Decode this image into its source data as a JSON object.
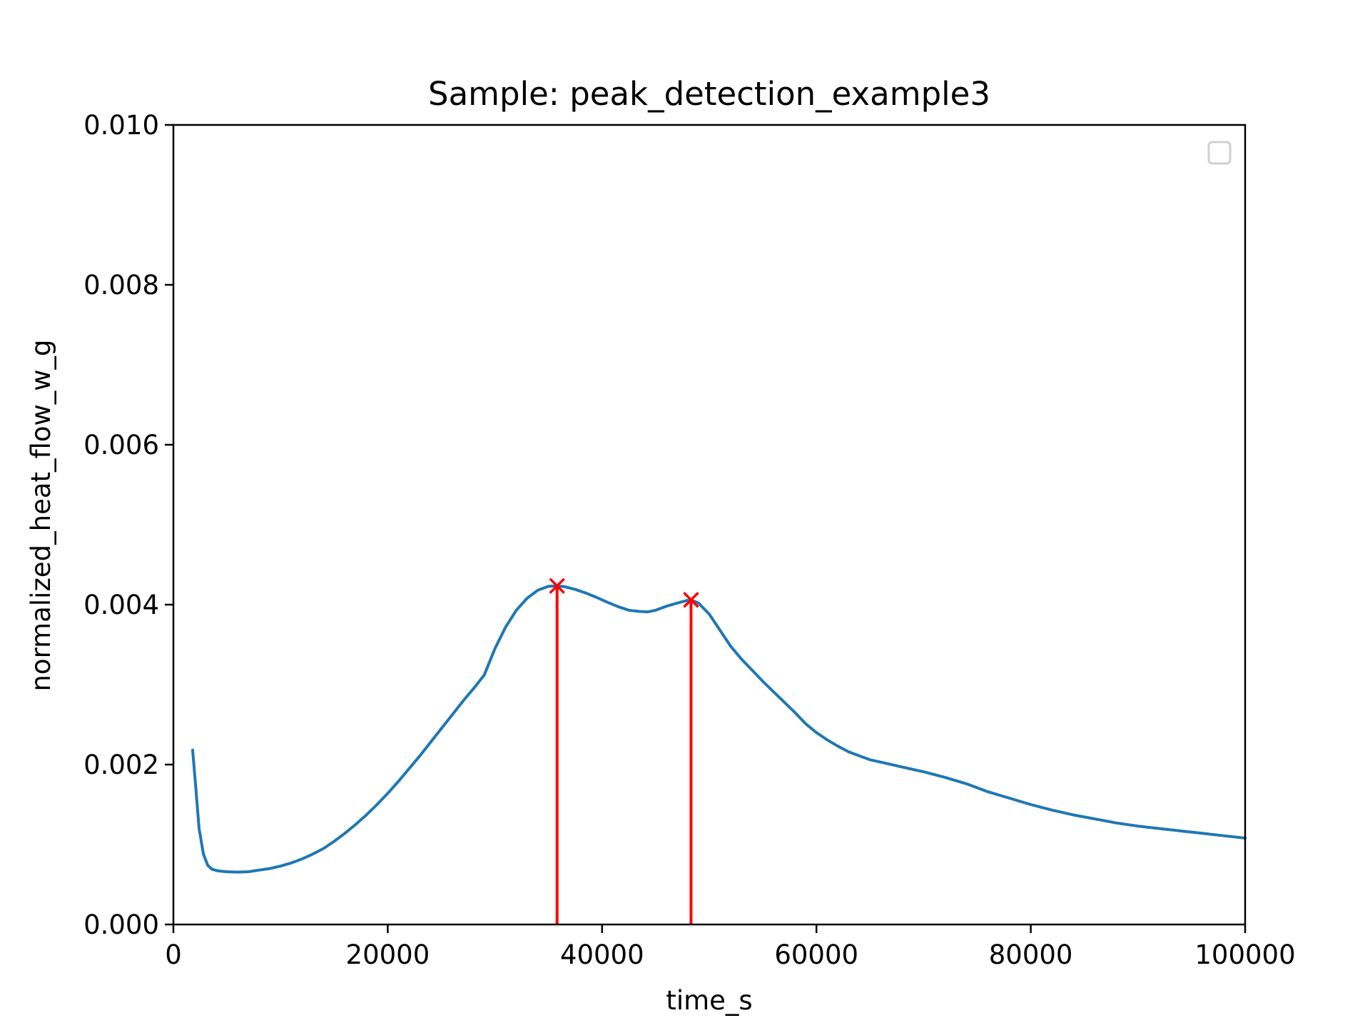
{
  "chart_data": {
    "type": "line",
    "title": "Sample: peak_detection_example3",
    "xlabel": "time_s",
    "ylabel": "normalized_heat_flow_w_g",
    "xlim": [
      0,
      100000
    ],
    "ylim": [
      0,
      0.01
    ],
    "xticks": [
      0,
      20000,
      40000,
      60000,
      80000,
      100000
    ],
    "xtick_labels": [
      "0",
      "20000",
      "40000",
      "60000",
      "80000",
      "100000"
    ],
    "yticks": [
      0,
      0.002,
      0.004,
      0.006,
      0.008,
      0.01
    ],
    "ytick_labels": [
      "0.000",
      "0.002",
      "0.004",
      "0.006",
      "0.008",
      "0.010"
    ],
    "grid": false,
    "legend": {
      "location": "upper right",
      "entries": []
    },
    "colors": {
      "series": "#1f77b4",
      "peaks": "#ff0000"
    },
    "series": [
      {
        "x": [
          1800,
          2100,
          2400,
          2800,
          3200,
          3600,
          4200,
          5000,
          6000,
          7000,
          8000,
          9000,
          10000,
          11000,
          12000,
          13000,
          14000,
          15000,
          16000,
          17000,
          18000,
          19000,
          20000,
          21000,
          22000,
          23000,
          24000,
          25000,
          26000,
          27000,
          27500,
          28000,
          29000,
          30000,
          31000,
          32000,
          33000,
          34000,
          35000,
          35800,
          36500,
          37500,
          38500,
          39500,
          40500,
          41500,
          42500,
          43500,
          44300,
          45000,
          46000,
          47000,
          48000,
          48300,
          49000,
          50000,
          51000,
          52000,
          53000,
          54000,
          55000,
          56000,
          57000,
          58000,
          59000,
          60000,
          61000,
          62000,
          63000,
          64000,
          65000,
          66000,
          68000,
          70000,
          72000,
          74000,
          75000,
          76000,
          78000,
          80000,
          82000,
          84000,
          86000,
          88000,
          90000,
          92000,
          94000,
          96000,
          98000,
          100000
        ],
        "y": [
          0.00218,
          0.0017,
          0.0012,
          0.00088,
          0.00074,
          0.00069,
          0.00067,
          0.00066,
          0.000655,
          0.00066,
          0.00068,
          0.0007,
          0.00073,
          0.00077,
          0.00082,
          0.00088,
          0.00095,
          0.00104,
          0.00114,
          0.00125,
          0.00137,
          0.0015,
          0.00164,
          0.00179,
          0.00195,
          0.00211,
          0.00228,
          0.00245,
          0.00262,
          0.00279,
          0.00287,
          0.00295,
          0.00312,
          0.00345,
          0.00372,
          0.00393,
          0.00408,
          0.00418,
          0.00423,
          0.004235,
          0.004225,
          0.00419,
          0.004145,
          0.00409,
          0.00403,
          0.003975,
          0.00393,
          0.003915,
          0.00391,
          0.00393,
          0.00398,
          0.00402,
          0.004055,
          0.00406,
          0.00402,
          0.00388,
          0.00368,
          0.00348,
          0.00332,
          0.00318,
          0.00304,
          0.00291,
          0.00278,
          0.00265,
          0.00251,
          0.0024,
          0.00231,
          0.00223,
          0.00216,
          0.00211,
          0.00206,
          0.00203,
          0.00197,
          0.00191,
          0.00184,
          0.00176,
          0.00171,
          0.00166,
          0.00158,
          0.0015,
          0.00143,
          0.00137,
          0.00132,
          0.00127,
          0.00123,
          0.0012,
          0.00117,
          0.00114,
          0.00111,
          0.00108
        ]
      }
    ],
    "peaks": [
      {
        "x": 35800,
        "y": 0.004235
      },
      {
        "x": 48300,
        "y": 0.00406
      }
    ]
  }
}
